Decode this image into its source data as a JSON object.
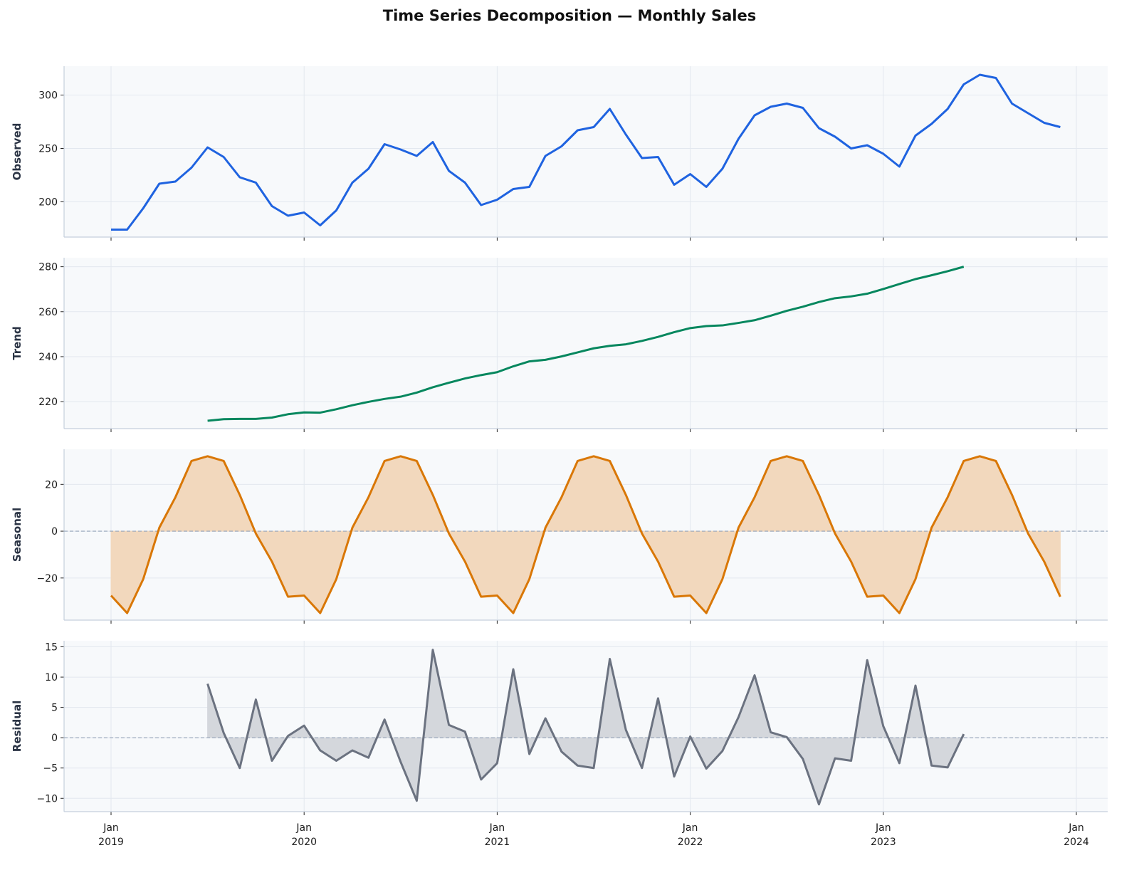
{
  "title": "Time Series Decomposition — Monthly Sales",
  "colors": {
    "observed": "#1f63e0",
    "trend": "#06875e",
    "seasonal": "#d97706",
    "seasonal_fill": "#f2d8bd",
    "residual": "#6b7280",
    "residual_fill": "#d4d7dc",
    "panel_bg": "#f7f9fb",
    "grid": "#e3e8ef",
    "zero_line": "#94a3b8"
  },
  "x_axis": {
    "tick_labels": [
      {
        "month": "Jan",
        "year": "2019"
      },
      {
        "month": "Jan",
        "year": "2020"
      },
      {
        "month": "Jan",
        "year": "2021"
      },
      {
        "month": "Jan",
        "year": "2022"
      },
      {
        "month": "Jan",
        "year": "2023"
      },
      {
        "month": "Jan",
        "year": "2024"
      }
    ]
  },
  "chart_data": [
    {
      "type": "line",
      "title": "Observed",
      "ylabel": "Observed",
      "xlabel": "",
      "x_start": "2019-01",
      "frequency": "monthly",
      "ylim": [
        167,
        327
      ],
      "yticks": [
        200,
        250,
        300
      ],
      "grid": true,
      "values": [
        174,
        174,
        194,
        217,
        219,
        232,
        251,
        242,
        223,
        218,
        196,
        187,
        190,
        178,
        192,
        218,
        231,
        254,
        249,
        243,
        256,
        229,
        218,
        197,
        202,
        212,
        214,
        243,
        252,
        267,
        270,
        287,
        263,
        241,
        242,
        216,
        226,
        214,
        231,
        259,
        281,
        289,
        292,
        288,
        269,
        261,
        250,
        253,
        245,
        233,
        262,
        273,
        287,
        310,
        319,
        316,
        292,
        283,
        274,
        270
      ]
    },
    {
      "type": "line",
      "title": "Trend",
      "ylabel": "Trend",
      "xlabel": "",
      "x_start": "2019-07",
      "frequency": "monthly",
      "ylim": [
        208,
        284
      ],
      "yticks": [
        220,
        240,
        260,
        280
      ],
      "grid": true,
      "values": [
        211.5,
        212.2,
        212.3,
        212.3,
        212.9,
        214.4,
        215.2,
        215.1,
        216.6,
        218.4,
        219.9,
        221.2,
        222.2,
        224.0,
        226.4,
        228.4,
        230.3,
        231.8,
        233.1,
        235.7,
        237.9,
        238.6,
        240.1,
        241.9,
        243.7,
        244.8,
        245.5,
        247.0,
        248.8,
        250.9,
        252.7,
        253.6,
        253.9,
        255.0,
        256.2,
        258.2,
        260.4,
        262.2,
        264.3,
        266.0,
        266.8,
        268.0,
        270.1,
        272.3,
        274.5,
        276.2,
        278.0,
        280.0
      ]
    },
    {
      "type": "area",
      "title": "Seasonal",
      "ylabel": "Seasonal",
      "xlabel": "",
      "x_start": "2019-01",
      "frequency": "monthly",
      "ylim": [
        -38,
        35
      ],
      "yticks": [
        -20,
        0,
        20
      ],
      "grid": true,
      "reference_line": 0,
      "pattern_12m": [
        -27.5,
        -35,
        -20.5,
        1.5,
        14.5,
        30,
        32,
        30,
        15.5,
        -1,
        -13,
        -28
      ],
      "values": [
        -27.5,
        -35,
        -20.5,
        1.5,
        14.5,
        30,
        32,
        30,
        15.5,
        -1,
        -13,
        -28,
        -27.5,
        -35,
        -20.5,
        1.5,
        14.5,
        30,
        32,
        30,
        15.5,
        -1,
        -13,
        -28,
        -27.5,
        -35,
        -20.5,
        1.5,
        14.5,
        30,
        32,
        30,
        15.5,
        -1,
        -13,
        -28,
        -27.5,
        -35,
        -20.5,
        1.5,
        14.5,
        30,
        32,
        30,
        15.5,
        -1,
        -13,
        -28,
        -27.5,
        -35,
        -20.5,
        1.5,
        14.5,
        30,
        32,
        30,
        15.5,
        -1,
        -13,
        -28
      ]
    },
    {
      "type": "area",
      "title": "Residual",
      "ylabel": "Residual",
      "xlabel": "",
      "x_start": "2019-07",
      "frequency": "monthly",
      "ylim": [
        -12.2,
        16
      ],
      "yticks": [
        -10,
        -5,
        0,
        5,
        10,
        15
      ],
      "grid": true,
      "reference_line": 0,
      "values": [
        8.9,
        0.8,
        -5.0,
        6.3,
        -3.8,
        0.3,
        2.0,
        -2.1,
        -3.8,
        -2.1,
        -3.3,
        3.0,
        -4.0,
        -10.4,
        14.5,
        2.1,
        1.0,
        -6.9,
        -4.2,
        11.3,
        -2.7,
        3.2,
        -2.3,
        -4.6,
        -5.0,
        13.0,
        1.3,
        -5.0,
        6.5,
        -6.4,
        0.2,
        -5.1,
        -2.2,
        3.4,
        10.3,
        0.9,
        0.1,
        -3.5,
        -11.0,
        -3.4,
        -3.8,
        12.8,
        1.9,
        -4.2,
        8.6,
        -4.6,
        -4.9,
        0.6
      ]
    }
  ]
}
